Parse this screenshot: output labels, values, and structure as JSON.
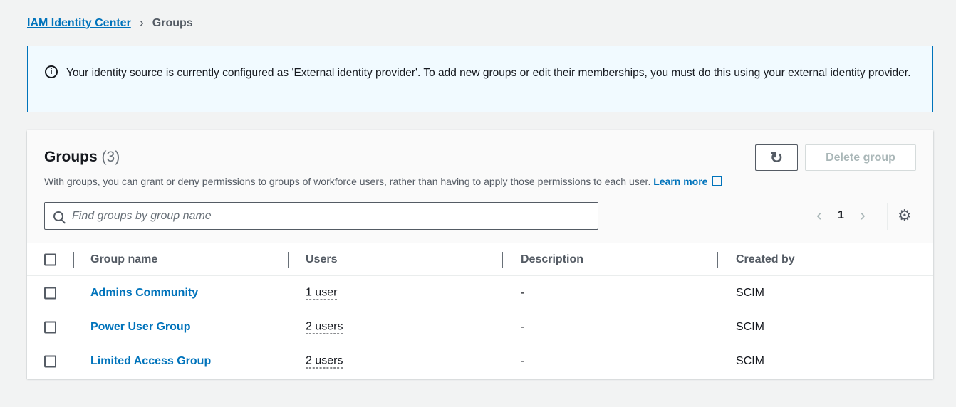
{
  "breadcrumb": {
    "root": "IAM Identity Center",
    "current": "Groups"
  },
  "info": {
    "icon": "info-icon",
    "text": "Your identity source is currently configured as 'External identity provider'. To add new groups or edit their memberships, you must do this using your external identity provider."
  },
  "groups": {
    "title": "Groups",
    "count": "(3)",
    "description": "With groups, you can grant or deny permissions to groups of workforce users, rather than having to apply those permissions to each user.",
    "learn_more": "Learn more",
    "delete_label": "Delete group",
    "search_placeholder": "Find groups by group name",
    "page": "1",
    "columns": [
      "Group name",
      "Users",
      "Description",
      "Created by"
    ],
    "rows": [
      {
        "name": "Admins Community",
        "users": "1 user",
        "description": "-",
        "created_by": "SCIM"
      },
      {
        "name": "Power User Group",
        "users": "2 users",
        "description": "-",
        "created_by": "SCIM"
      },
      {
        "name": "Limited Access Group",
        "users": "2 users",
        "description": "-",
        "created_by": "SCIM"
      }
    ]
  },
  "colors": {
    "link": "#0073bb",
    "info_bg": "#f1faff",
    "page_bg": "#f2f3f3"
  }
}
